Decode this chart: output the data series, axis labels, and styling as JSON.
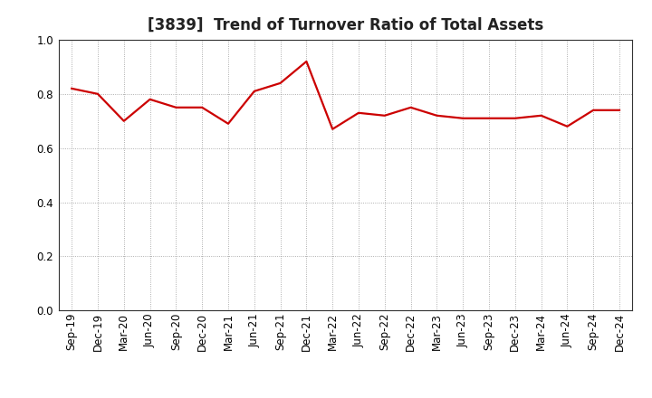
{
  "title": "[3839]  Trend of Turnover Ratio of Total Assets",
  "labels": [
    "Sep-19",
    "Dec-19",
    "Mar-20",
    "Jun-20",
    "Sep-20",
    "Dec-20",
    "Mar-21",
    "Jun-21",
    "Sep-21",
    "Dec-21",
    "Mar-22",
    "Jun-22",
    "Sep-22",
    "Dec-22",
    "Mar-23",
    "Jun-23",
    "Sep-23",
    "Dec-23",
    "Mar-24",
    "Jun-24",
    "Sep-24",
    "Dec-24"
  ],
  "values": [
    0.82,
    0.8,
    0.7,
    0.78,
    0.75,
    0.75,
    0.69,
    0.81,
    0.84,
    0.92,
    0.67,
    0.73,
    0.72,
    0.75,
    0.72,
    0.71,
    0.71,
    0.71,
    0.72,
    0.68,
    0.74,
    0.74
  ],
  "line_color": "#cc0000",
  "line_width": 1.6,
  "ylim": [
    0.0,
    1.0
  ],
  "yticks": [
    0.0,
    0.2,
    0.4,
    0.6,
    0.8,
    1.0
  ],
  "background_color": "#ffffff",
  "grid_color": "#999999",
  "title_fontsize": 12,
  "tick_fontsize": 8.5,
  "title_color": "#222222"
}
